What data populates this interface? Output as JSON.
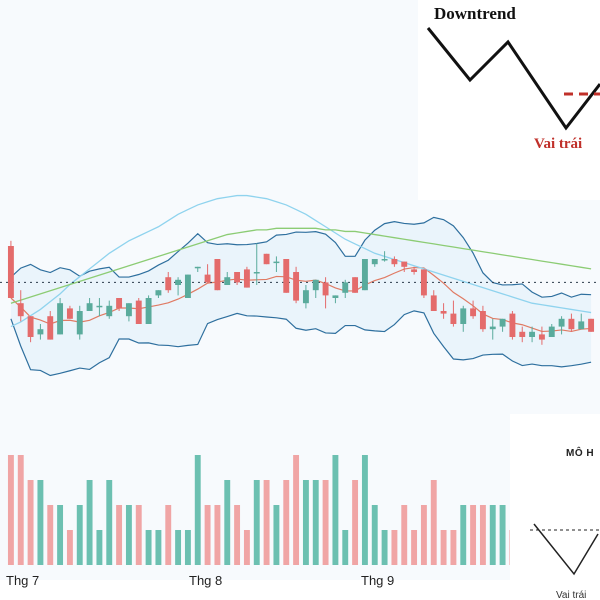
{
  "chart_data": {
    "type": "candlestick",
    "x_tick_labels": [
      "Thg 7",
      "Thg 8",
      "Thg 9"
    ],
    "ylim": [
      0,
      100
    ],
    "candles": [
      {
        "o": 40,
        "h": 42,
        "l": 20,
        "c": 20
      },
      {
        "o": 18,
        "h": 23,
        "l": 11,
        "c": 13
      },
      {
        "o": 13,
        "h": 13,
        "l": 3,
        "c": 5
      },
      {
        "o": 6,
        "h": 10,
        "l": 4,
        "c": 8
      },
      {
        "o": 13,
        "h": 15,
        "l": 4,
        "c": 4
      },
      {
        "o": 6,
        "h": 20,
        "l": 6,
        "c": 18
      },
      {
        "o": 16,
        "h": 17,
        "l": 12,
        "c": 12
      },
      {
        "o": 6,
        "h": 17,
        "l": 4,
        "c": 15
      },
      {
        "o": 15,
        "h": 20,
        "l": 15,
        "c": 18
      },
      {
        "o": 17,
        "h": 20,
        "l": 13,
        "c": 17
      },
      {
        "o": 13,
        "h": 19,
        "l": 12,
        "c": 17
      },
      {
        "o": 20,
        "h": 20,
        "l": 15,
        "c": 16
      },
      {
        "o": 13,
        "h": 18,
        "l": 11,
        "c": 18
      },
      {
        "o": 19,
        "h": 20,
        "l": 10,
        "c": 10
      },
      {
        "o": 10,
        "h": 21,
        "l": 10,
        "c": 20
      },
      {
        "o": 21,
        "h": 23,
        "l": 20,
        "c": 23
      },
      {
        "o": 28,
        "h": 30,
        "l": 22,
        "c": 23
      },
      {
        "o": 25,
        "h": 28,
        "l": 21,
        "c": 27
      },
      {
        "o": 20,
        "h": 29,
        "l": 20,
        "c": 29
      },
      {
        "o": 32,
        "h": 32,
        "l": 30,
        "c": 32
      },
      {
        "o": 29,
        "h": 33,
        "l": 26,
        "c": 26
      },
      {
        "o": 35,
        "h": 35,
        "l": 23,
        "c": 23
      },
      {
        "o": 25,
        "h": 30,
        "l": 25,
        "c": 28
      },
      {
        "o": 30,
        "h": 30,
        "l": 25,
        "c": 26
      },
      {
        "o": 31,
        "h": 32,
        "l": 24,
        "c": 24
      },
      {
        "o": 30,
        "h": 41,
        "l": 25,
        "c": 30
      },
      {
        "o": 37,
        "h": 37,
        "l": 33,
        "c": 33
      },
      {
        "o": 34,
        "h": 36,
        "l": 30,
        "c": 34
      },
      {
        "o": 35,
        "h": 35,
        "l": 22,
        "c": 22
      },
      {
        "o": 30,
        "h": 32,
        "l": 18,
        "c": 19
      },
      {
        "o": 18,
        "h": 25,
        "l": 16,
        "c": 23
      },
      {
        "o": 23,
        "h": 27,
        "l": 20,
        "c": 27
      },
      {
        "o": 26,
        "h": 28,
        "l": 16,
        "c": 21
      },
      {
        "o": 20,
        "h": 21,
        "l": 18,
        "c": 21
      },
      {
        "o": 22,
        "h": 27,
        "l": 20,
        "c": 26
      },
      {
        "o": 28,
        "h": 28,
        "l": 22,
        "c": 22
      },
      {
        "o": 23,
        "h": 35,
        "l": 23,
        "c": 35
      },
      {
        "o": 33,
        "h": 35,
        "l": 32,
        "c": 35
      },
      {
        "o": 35,
        "h": 38,
        "l": 34,
        "c": 35
      },
      {
        "o": 35,
        "h": 36,
        "l": 32,
        "c": 33
      },
      {
        "o": 34,
        "h": 34,
        "l": 30,
        "c": 32
      },
      {
        "o": 31,
        "h": 32,
        "l": 29,
        "c": 30
      },
      {
        "o": 31,
        "h": 31,
        "l": 20,
        "c": 21
      },
      {
        "o": 21,
        "h": 23,
        "l": 15,
        "c": 15
      },
      {
        "o": 15,
        "h": 18,
        "l": 12,
        "c": 14
      },
      {
        "o": 14,
        "h": 19,
        "l": 9,
        "c": 10
      },
      {
        "o": 10,
        "h": 17,
        "l": 7,
        "c": 16
      },
      {
        "o": 16,
        "h": 19,
        "l": 12,
        "c": 13
      },
      {
        "o": 15,
        "h": 17,
        "l": 7,
        "c": 8
      },
      {
        "o": 8,
        "h": 12,
        "l": 4,
        "c": 9
      },
      {
        "o": 9,
        "h": 12,
        "l": 7,
        "c": 12
      },
      {
        "o": 14,
        "h": 15,
        "l": 4,
        "c": 5
      },
      {
        "o": 7,
        "h": 9,
        "l": 3,
        "c": 5
      },
      {
        "o": 5,
        "h": 9,
        "l": 3,
        "c": 7
      },
      {
        "o": 6,
        "h": 9,
        "l": 2,
        "c": 4
      },
      {
        "o": 5,
        "h": 10,
        "l": 5,
        "c": 9
      },
      {
        "o": 9,
        "h": 13,
        "l": 6,
        "c": 12
      },
      {
        "o": 12,
        "h": 14,
        "l": 7,
        "c": 8
      },
      {
        "o": 8,
        "h": 14,
        "l": 8,
        "c": 11
      },
      {
        "o": 12,
        "h": 12,
        "l": 7,
        "c": 7
      }
    ],
    "volume": [
      4,
      4,
      3,
      3,
      2,
      2,
      1,
      2,
      3,
      1,
      3,
      2,
      2,
      2,
      1,
      1,
      2,
      1,
      1,
      4,
      2,
      2,
      3,
      2,
      1,
      3,
      3,
      2,
      3,
      4,
      3,
      3,
      3,
      4,
      1,
      3,
      4,
      2,
      1,
      1,
      2,
      1,
      2,
      3,
      1,
      1,
      2,
      2,
      2,
      2,
      2,
      1,
      2,
      1,
      1,
      2,
      1,
      1,
      1,
      1
    ],
    "series": [
      {
        "values": [
          0.15,
          0.18,
          0.22,
          0.26,
          0.31,
          0.36,
          0.42,
          0.47,
          0.52,
          0.57,
          0.62,
          0.66,
          0.7,
          0.73,
          0.76,
          0.79,
          0.83,
          0.87,
          0.9,
          0.93,
          0.95,
          0.97,
          0.98,
          0.99,
          0.99,
          0.98,
          0.97,
          0.95,
          0.93,
          0.9,
          0.87,
          0.83,
          0.79,
          0.75,
          0.71,
          0.68,
          0.65,
          0.62,
          0.6,
          0.58,
          0.56,
          0.54,
          0.52,
          0.5,
          0.48,
          0.46,
          0.44,
          0.42,
          0.4,
          0.38,
          0.36,
          0.34,
          0.32,
          0.3,
          0.29,
          0.28,
          0.27,
          0.26,
          0.25,
          0.24
        ]
      },
      {
        "values": [
          0.3,
          0.32,
          0.34,
          0.36,
          0.38,
          0.4,
          0.42,
          0.44,
          0.46,
          0.48,
          0.5,
          0.52,
          0.54,
          0.56,
          0.58,
          0.6,
          0.62,
          0.64,
          0.66,
          0.68,
          0.7,
          0.72,
          0.74,
          0.75,
          0.76,
          0.77,
          0.77,
          0.78,
          0.78,
          0.78,
          0.78,
          0.78,
          0.77,
          0.77,
          0.76,
          0.76,
          0.75,
          0.74,
          0.73,
          0.72,
          0.71,
          0.7,
          0.69,
          0.68,
          0.67,
          0.66,
          0.65,
          0.64,
          0.63,
          0.62,
          0.61,
          0.6,
          0.59,
          0.58,
          0.57,
          0.56,
          0.55,
          0.54,
          0.53,
          0.52
        ]
      }
    ]
  },
  "inset_top": {
    "title": "Downtrend",
    "label": "Vai trái",
    "accent": "#c0302a"
  },
  "inset_bottom": {
    "title": "MÔ H",
    "label": "Vai trái"
  },
  "colors": {
    "up": "#5aab9c",
    "down": "#e46b6b",
    "volume_up": "#6cc0b1",
    "volume_down": "#f0a5a5",
    "bollinger": "#2e6f9e",
    "ma_red": "#e07a63",
    "ma_blue": "#8fd3ee",
    "ma_green": "#8ccc74",
    "band_fill": "#eaf4fb"
  }
}
